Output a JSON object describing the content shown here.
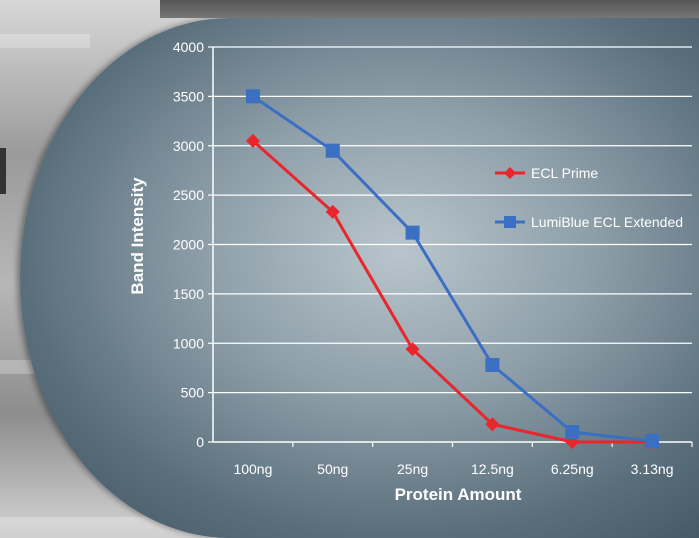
{
  "chart_data": {
    "type": "line",
    "title": "",
    "xlabel": "Protein Amount",
    "ylabel": "Band Intensity",
    "categories": [
      "100ng",
      "50ng",
      "25ng",
      "12.5ng",
      "6.25ng",
      "3.13ng"
    ],
    "ylim": [
      0,
      4000
    ],
    "yticks": [
      0,
      500,
      1000,
      1500,
      2000,
      2500,
      3000,
      3500,
      4000
    ],
    "grid": true,
    "legend_position": "right",
    "series": [
      {
        "name": "ECL Prime",
        "values": [
          3050,
          2330,
          940,
          180,
          0,
          0
        ],
        "color": "#e8262b",
        "marker": "diamond"
      },
      {
        "name": "LumiBlue ECL Extended",
        "values": [
          3500,
          2950,
          2120,
          780,
          100,
          10
        ],
        "color": "#3b6fc4",
        "marker": "square"
      }
    ]
  }
}
